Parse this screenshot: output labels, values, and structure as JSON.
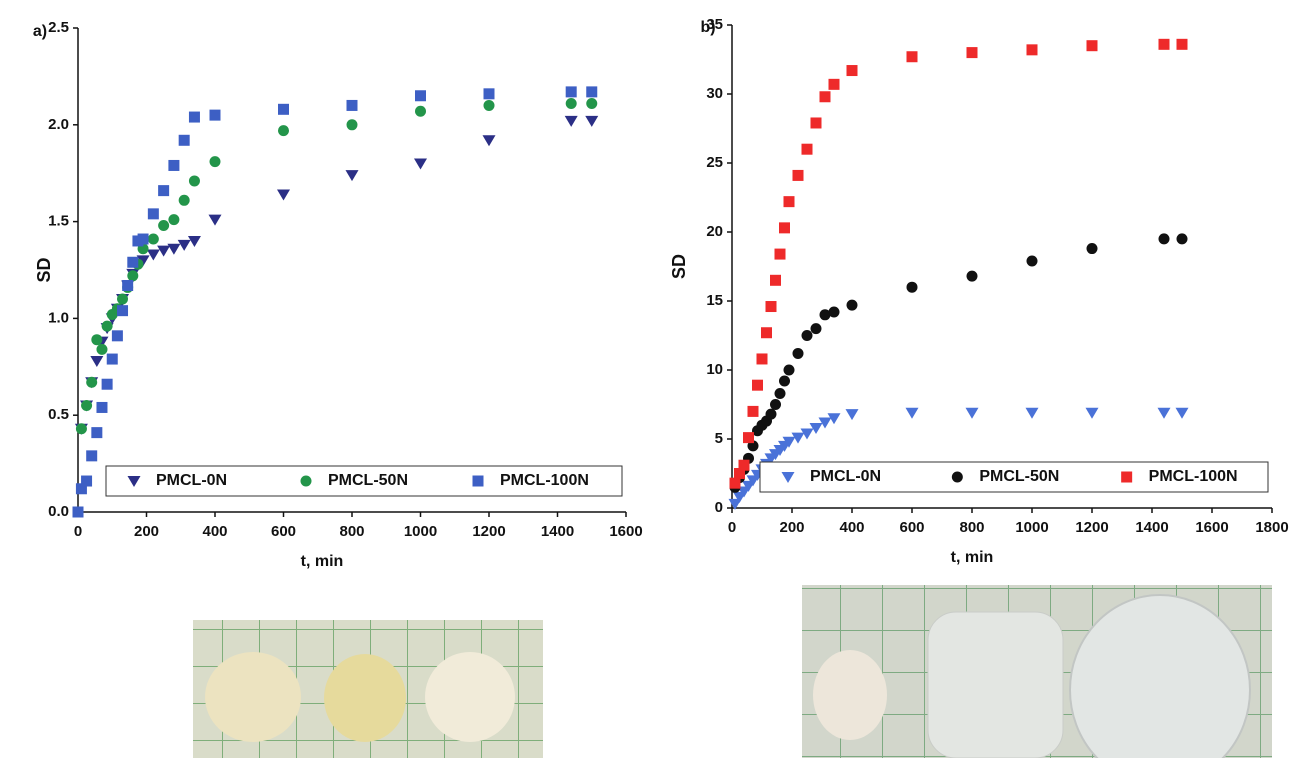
{
  "chart_data": [
    {
      "type": "scatter",
      "panel_label": "a)",
      "xlabel": "t, min",
      "ylabel": "SD",
      "x": [
        0,
        10,
        25,
        40,
        55,
        70,
        85,
        100,
        115,
        130,
        145,
        160,
        175,
        190,
        220,
        250,
        280,
        310,
        340,
        400,
        600,
        800,
        1000,
        1200,
        1440,
        1500
      ],
      "series": [
        {
          "name": "PMCL-0N",
          "color": "#2b2f86",
          "marker": "triangle-down",
          "values": [
            null,
            0.43,
            0.55,
            0.67,
            0.78,
            0.88,
            0.95,
            1.0,
            1.05,
            1.1,
            1.17,
            1.23,
            1.28,
            1.3,
            1.33,
            1.35,
            1.36,
            1.38,
            1.4,
            1.51,
            1.64,
            1.74,
            1.8,
            1.92,
            2.02,
            2.02
          ]
        },
        {
          "name": "PMCL-50N",
          "color": "#23954a",
          "marker": "circle",
          "values": [
            null,
            0.43,
            0.55,
            0.67,
            0.89,
            0.84,
            0.96,
            1.02,
            1.05,
            1.1,
            1.16,
            1.22,
            1.28,
            1.36,
            1.41,
            1.48,
            1.51,
            1.61,
            1.71,
            1.81,
            1.97,
            2.0,
            2.07,
            2.1,
            2.11,
            2.11
          ]
        },
        {
          "name": "PMCL-100N",
          "color": "#3d5fc4",
          "marker": "square",
          "values": [
            0.0,
            0.12,
            0.16,
            0.29,
            0.41,
            0.54,
            0.66,
            0.79,
            0.91,
            1.04,
            1.17,
            1.29,
            1.4,
            1.41,
            1.54,
            1.66,
            1.79,
            1.92,
            2.04,
            2.05,
            2.08,
            2.1,
            2.15,
            2.16,
            2.17,
            2.17
          ]
        }
      ],
      "xlim": [
        0,
        1600
      ],
      "xticks": [
        0,
        200,
        400,
        600,
        800,
        1000,
        1200,
        1400,
        1600
      ],
      "ylim": [
        0,
        2.5
      ],
      "yticks": [
        {
          "value": 0,
          "label": "0.0"
        },
        0.5,
        {
          "value": 1,
          "label": "1.0"
        },
        1.5,
        {
          "value": 2,
          "label": "2.0"
        },
        2.5
      ],
      "legend": "bottom"
    },
    {
      "type": "scatter",
      "panel_label": "b)",
      "xlabel": "t, min",
      "ylabel": "SD",
      "x": [
        10,
        25,
        40,
        55,
        70,
        85,
        100,
        115,
        130,
        145,
        160,
        175,
        190,
        220,
        250,
        280,
        310,
        340,
        400,
        600,
        800,
        1000,
        1200,
        1440,
        1500
      ],
      "series": [
        {
          "name": "PMCL-0N",
          "color": "#4a72d8",
          "marker": "triangle-down",
          "values": [
            0.3,
            0.8,
            1.2,
            1.6,
            2.0,
            2.4,
            2.8,
            3.2,
            3.6,
            3.9,
            4.2,
            4.5,
            4.8,
            5.1,
            5.4,
            5.8,
            6.2,
            6.5,
            6.8,
            6.9,
            6.9,
            6.9,
            6.9,
            6.9,
            6.9
          ]
        },
        {
          "name": "PMCL-50N",
          "color": "#111111",
          "marker": "circle",
          "values": [
            1.5,
            2.2,
            2.8,
            3.6,
            4.5,
            5.6,
            6.0,
            6.3,
            6.8,
            7.5,
            8.3,
            9.2,
            10.0,
            11.2,
            12.5,
            13.0,
            14.0,
            14.2,
            14.7,
            16.0,
            16.8,
            17.9,
            18.8,
            19.5,
            19.5
          ]
        },
        {
          "name": "PMCL-100N",
          "color": "#ee2a2a",
          "marker": "square",
          "values": [
            1.8,
            2.5,
            3.1,
            5.1,
            7.0,
            8.9,
            10.8,
            12.7,
            14.6,
            16.5,
            18.4,
            20.3,
            22.2,
            24.1,
            26.0,
            27.9,
            29.8,
            30.7,
            31.7,
            32.7,
            33.0,
            33.2,
            33.5,
            33.6,
            33.6
          ]
        }
      ],
      "xlim": [
        0,
        1800
      ],
      "xticks": [
        0,
        200,
        400,
        600,
        800,
        1000,
        1200,
        1400,
        1600,
        1800
      ],
      "ylim": [
        0,
        35
      ],
      "yticks": [
        0,
        5,
        10,
        15,
        20,
        25,
        30,
        35
      ],
      "legend": "bottom"
    }
  ]
}
